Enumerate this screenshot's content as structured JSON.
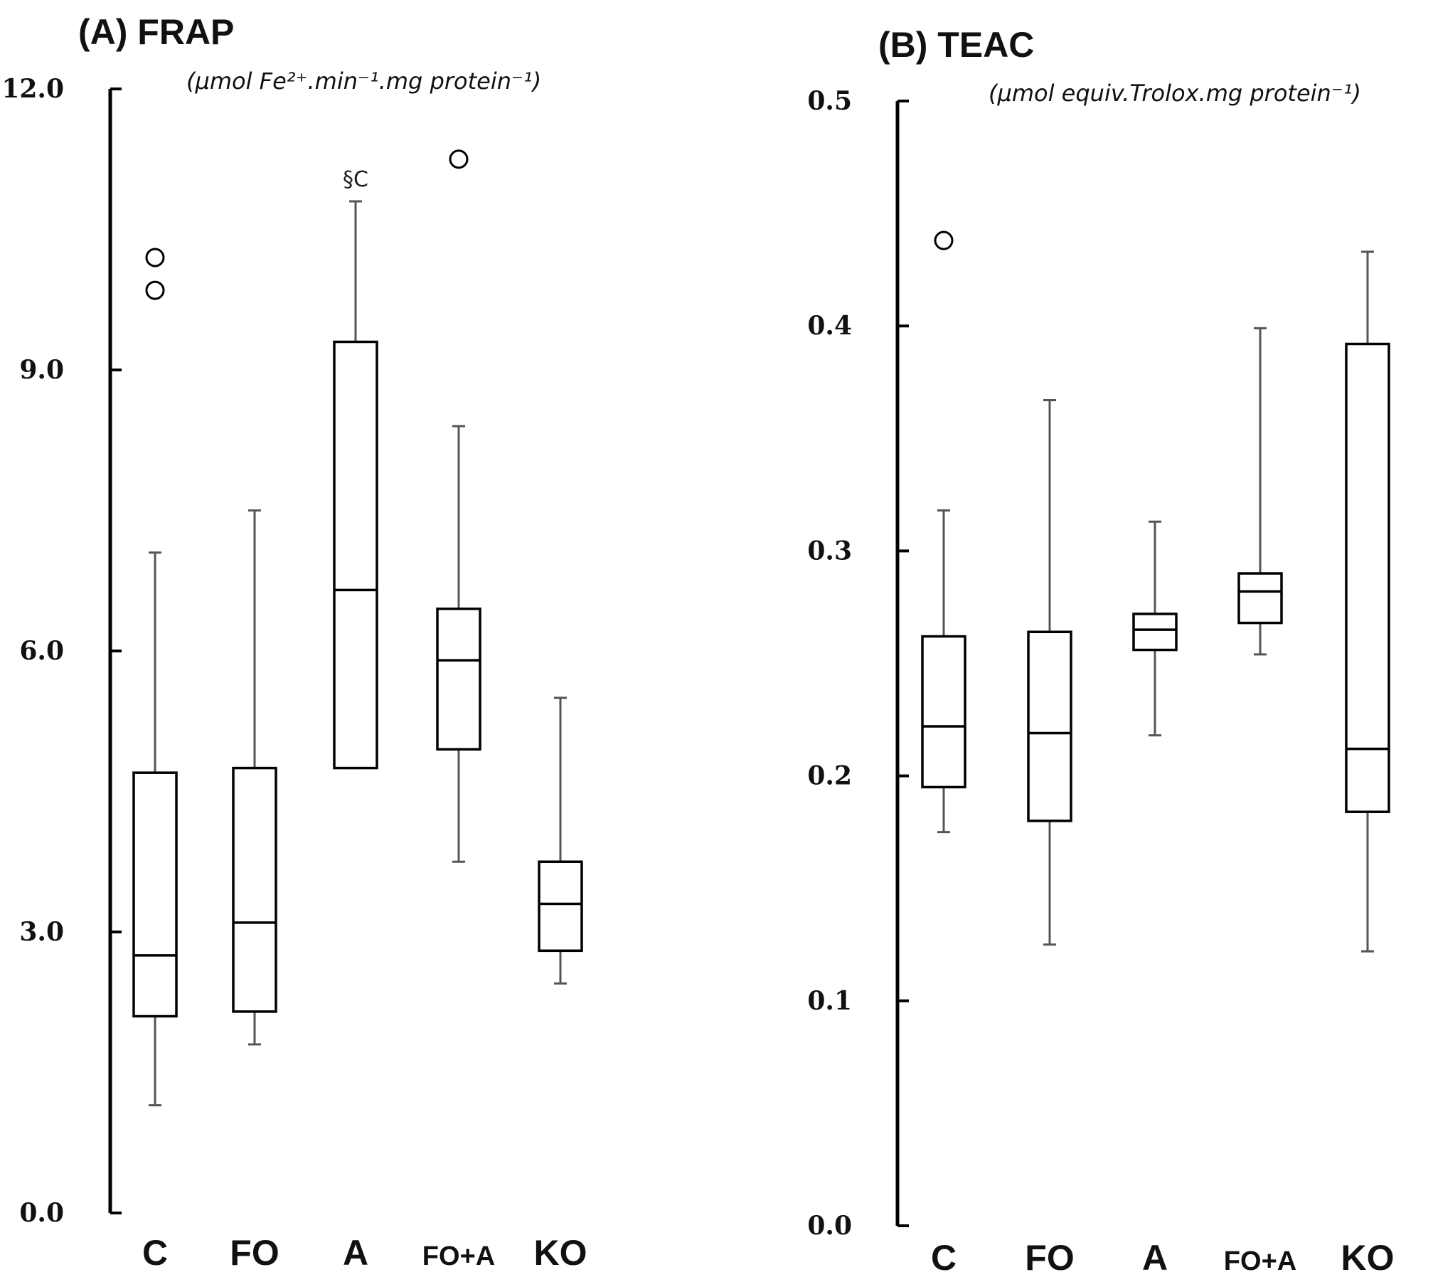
{
  "chart_data": [
    {
      "type": "box",
      "title": "(A) FRAP",
      "unit_label": "(µmol Fe²⁺.min⁻¹.mg protein⁻¹)",
      "ylim": [
        0,
        12
      ],
      "yticks": [
        "0.0",
        "3.0",
        "6.0",
        "9.0",
        "12.0"
      ],
      "ytick_values": [
        0,
        3,
        6,
        9,
        12
      ],
      "categories": [
        "C",
        "FO",
        "A",
        "FO+A",
        "KO"
      ],
      "boxes": [
        {
          "category": "C",
          "whisker_low": 1.15,
          "q1": 2.1,
          "median": 2.75,
          "q3": 4.7,
          "whisker_high": 7.05,
          "outliers": [
            10.2,
            9.85
          ]
        },
        {
          "category": "FO",
          "whisker_low": 1.8,
          "q1": 2.15,
          "median": 3.1,
          "q3": 4.75,
          "whisker_high": 7.5,
          "outliers": []
        },
        {
          "category": "A",
          "whisker_low": 4.75,
          "q1": 4.75,
          "median": 6.65,
          "q3": 9.3,
          "whisker_high": 10.8,
          "outliers": [],
          "annotation": "§C"
        },
        {
          "category": "FO+A",
          "whisker_low": 3.75,
          "q1": 4.95,
          "median": 5.9,
          "q3": 6.45,
          "whisker_high": 8.4,
          "outliers": [
            11.25
          ]
        },
        {
          "category": "KO",
          "whisker_low": 2.45,
          "q1": 2.8,
          "median": 3.3,
          "q3": 3.75,
          "whisker_high": 5.5,
          "outliers": []
        }
      ]
    },
    {
      "type": "box",
      "title": "(B) TEAC",
      "unit_label": "(µmol equiv.Trolox.mg protein⁻¹)",
      "ylim": [
        0,
        0.5
      ],
      "yticks": [
        "0.0",
        "0.1",
        "0.2",
        "0.3",
        "0.4",
        "0.5"
      ],
      "ytick_values": [
        0,
        0.1,
        0.2,
        0.3,
        0.4,
        0.5
      ],
      "categories": [
        "C",
        "FO",
        "A",
        "FO+A",
        "KO"
      ],
      "boxes": [
        {
          "category": "C",
          "whisker_low": 0.175,
          "q1": 0.195,
          "median": 0.222,
          "q3": 0.262,
          "whisker_high": 0.318,
          "outliers": [
            0.438
          ]
        },
        {
          "category": "FO",
          "whisker_low": 0.125,
          "q1": 0.18,
          "median": 0.219,
          "q3": 0.264,
          "whisker_high": 0.367,
          "outliers": []
        },
        {
          "category": "A",
          "whisker_low": 0.218,
          "q1": 0.256,
          "median": 0.265,
          "q3": 0.272,
          "whisker_high": 0.313,
          "outliers": []
        },
        {
          "category": "FO+A",
          "whisker_low": 0.254,
          "q1": 0.268,
          "median": 0.282,
          "q3": 0.29,
          "whisker_high": 0.399,
          "outliers": []
        },
        {
          "category": "KO",
          "whisker_low": 0.122,
          "q1": 0.184,
          "median": 0.212,
          "q3": 0.392,
          "whisker_high": 0.433,
          "outliers": []
        }
      ]
    }
  ]
}
